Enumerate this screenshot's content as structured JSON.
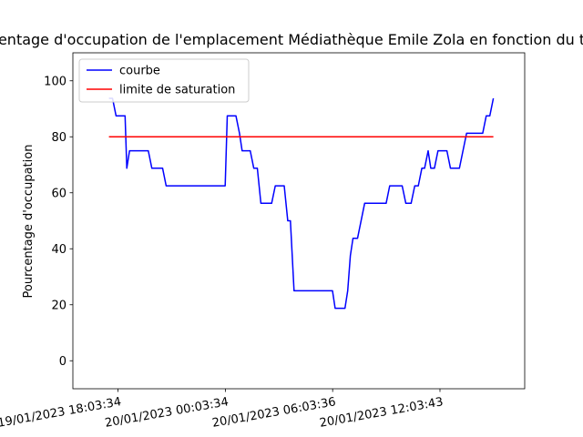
{
  "chart_data": {
    "type": "line",
    "title": "Pourcentage d'occupation de l'emplacement Médiathèque Emile Zola en fonction du temps",
    "xlabel": "",
    "ylabel": "Pourcentage d'occupation",
    "ylim": [
      -10,
      110
    ],
    "yticks": [
      0,
      20,
      40,
      60,
      80,
      100
    ],
    "xlim": [
      "2023-01-19T15:32:00",
      "2023-01-20T16:48:00"
    ],
    "xticks": [
      {
        "x": "2023-01-19T18:03:34",
        "label": "19/01/2023 18:03:34"
      },
      {
        "x": "2023-01-20T00:03:34",
        "label": "20/01/2023 00:03:34"
      },
      {
        "x": "2023-01-20T06:03:36",
        "label": "20/01/2023 06:03:36"
      },
      {
        "x": "2023-01-20T12:03:43",
        "label": "20/01/2023 12:03:43"
      }
    ],
    "grid": false,
    "legend": "upper left",
    "series": [
      {
        "name": "courbe",
        "color": "#0000ff",
        "points": [
          [
            "2023-01-19T17:33:00",
            93.75
          ],
          [
            "2023-01-19T17:45:00",
            93.75
          ],
          [
            "2023-01-19T17:57:00",
            87.5
          ],
          [
            "2023-01-19T18:27:00",
            87.5
          ],
          [
            "2023-01-19T18:33:00",
            68.75
          ],
          [
            "2023-01-19T18:42:00",
            75
          ],
          [
            "2023-01-19T19:45:00",
            75
          ],
          [
            "2023-01-19T19:57:00",
            68.75
          ],
          [
            "2023-01-19T20:33:00",
            68.75
          ],
          [
            "2023-01-19T20:45:00",
            62.5
          ],
          [
            "2023-01-20T00:03:00",
            62.5
          ],
          [
            "2023-01-20T00:10:00",
            87.5
          ],
          [
            "2023-01-20T00:39:00",
            87.5
          ],
          [
            "2023-01-20T00:51:00",
            81.25
          ],
          [
            "2023-01-20T01:00:00",
            75
          ],
          [
            "2023-01-20T01:27:00",
            75
          ],
          [
            "2023-01-20T01:39:00",
            68.75
          ],
          [
            "2023-01-20T01:51:00",
            68.75
          ],
          [
            "2023-01-20T02:03:00",
            56.25
          ],
          [
            "2023-01-20T02:39:00",
            56.25
          ],
          [
            "2023-01-20T02:51:00",
            62.5
          ],
          [
            "2023-01-20T03:21:00",
            62.5
          ],
          [
            "2023-01-20T03:33:00",
            50
          ],
          [
            "2023-01-20T03:42:00",
            50
          ],
          [
            "2023-01-20T03:54:00",
            25
          ],
          [
            "2023-01-20T06:03:00",
            25
          ],
          [
            "2023-01-20T06:12:00",
            18.75
          ],
          [
            "2023-01-20T06:45:00",
            18.75
          ],
          [
            "2023-01-20T06:54:00",
            25
          ],
          [
            "2023-01-20T07:03:00",
            37.5
          ],
          [
            "2023-01-20T07:12:00",
            43.75
          ],
          [
            "2023-01-20T07:27:00",
            43.75
          ],
          [
            "2023-01-20T07:51:00",
            56.25
          ],
          [
            "2023-01-20T09:03:00",
            56.25
          ],
          [
            "2023-01-20T09:15:00",
            62.5
          ],
          [
            "2023-01-20T09:57:00",
            62.5
          ],
          [
            "2023-01-20T10:09:00",
            56.25
          ],
          [
            "2023-01-20T10:27:00",
            56.25
          ],
          [
            "2023-01-20T10:39:00",
            62.5
          ],
          [
            "2023-01-20T10:51:00",
            62.5
          ],
          [
            "2023-01-20T11:03:00",
            68.75
          ],
          [
            "2023-01-20T11:12:00",
            68.75
          ],
          [
            "2023-01-20T11:24:00",
            75
          ],
          [
            "2023-01-20T11:33:00",
            68.75
          ],
          [
            "2023-01-20T11:45:00",
            68.75
          ],
          [
            "2023-01-20T11:57:00",
            75
          ],
          [
            "2023-01-20T12:27:00",
            75
          ],
          [
            "2023-01-20T12:39:00",
            68.75
          ],
          [
            "2023-01-20T13:09:00",
            68.75
          ],
          [
            "2023-01-20T13:33:00",
            81.25
          ],
          [
            "2023-01-20T14:27:00",
            81.25
          ],
          [
            "2023-01-20T14:39:00",
            87.5
          ],
          [
            "2023-01-20T14:51:00",
            87.5
          ],
          [
            "2023-01-20T15:03:00",
            93.75
          ]
        ]
      },
      {
        "name": "limite de saturation",
        "color": "#ff0000",
        "points": [
          [
            "2023-01-19T17:33:00",
            80
          ],
          [
            "2023-01-20T15:03:00",
            80
          ]
        ]
      }
    ]
  }
}
